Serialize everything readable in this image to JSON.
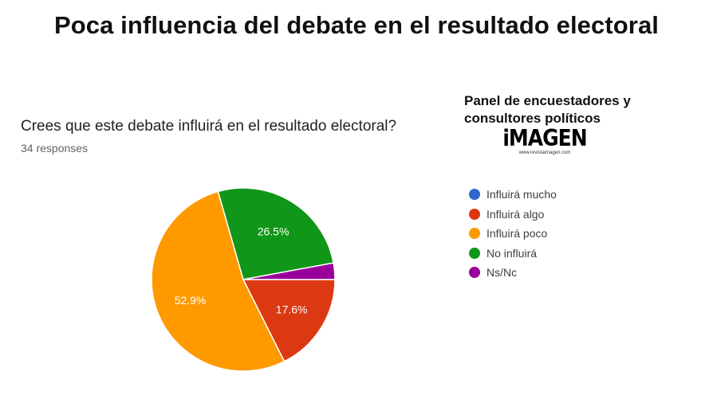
{
  "header": {
    "headline": "Poca influencia del debate en el resultado electoral"
  },
  "panel": {
    "line1": "Panel de encuestadores y",
    "line2": "consultores políticos",
    "logo_text": "iMAGEN",
    "logo_url": "www.revistaimagen.com"
  },
  "chart_data": {
    "type": "pie",
    "title": "Crees que este debate influirá en el resultado electoral?",
    "subtitle": "34 responses",
    "legend_position": "right",
    "series": [
      {
        "name": "Influirá mucho",
        "value": 0.0,
        "color": "#3366cc",
        "label": ""
      },
      {
        "name": "Influirá algo",
        "value": 17.6,
        "color": "#dc3912",
        "label": "17.6%"
      },
      {
        "name": "Influirá poco",
        "value": 52.9,
        "color": "#ff9900",
        "label": "52.9%"
      },
      {
        "name": "No influirá",
        "value": 26.5,
        "color": "#109618",
        "label": "26.5%"
      },
      {
        "name": "Ns/Nc",
        "value": 2.9,
        "color": "#990099",
        "label": ""
      }
    ]
  }
}
